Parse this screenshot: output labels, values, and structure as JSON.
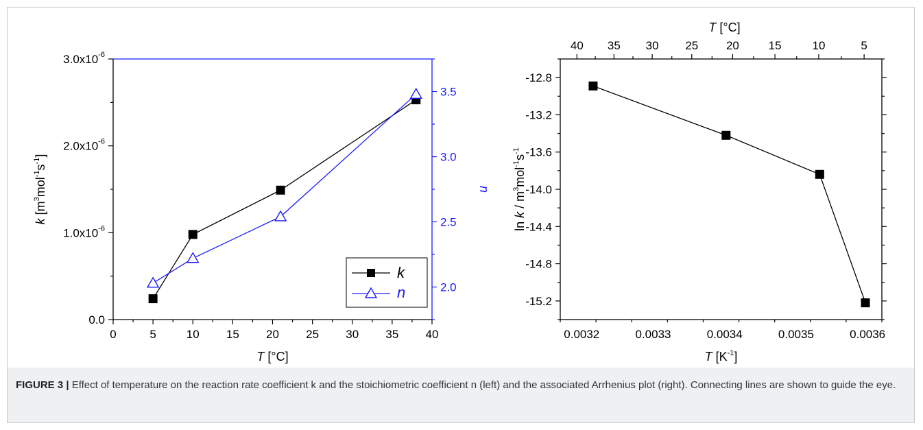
{
  "chart_data": [
    {
      "type": "line",
      "xlabel": "T [°C]",
      "ylabel_left": "k [m³mol⁻¹s⁻¹]",
      "ylabel_right": "n",
      "xlim": [
        0,
        40
      ],
      "ylim_left": [
        0,
        3e-06
      ],
      "ylim_right": [
        1.75,
        3.75
      ],
      "x_ticks": [
        "0",
        "5",
        "10",
        "15",
        "20",
        "25",
        "30",
        "35",
        "40"
      ],
      "y_left_ticks": [
        {
          "value": 0,
          "base": "0.0",
          "exp": ""
        },
        {
          "value": 1e-06,
          "base": "1.0x10",
          "exp": "-6"
        },
        {
          "value": 2e-06,
          "base": "2.0x10",
          "exp": "-6"
        },
        {
          "value": 3e-06,
          "base": "3.0x10",
          "exp": "-6"
        }
      ],
      "y_right_ticks": [
        "2.0",
        "2.5",
        "3.0",
        "3.5"
      ],
      "series": [
        {
          "name": "k",
          "axis": "left",
          "color": "#000000",
          "marker": "filled-square",
          "x": [
            5,
            10,
            21,
            38
          ],
          "values": [
            2.4e-07,
            9.8e-07,
            1.49e-06,
            2.53e-06
          ]
        },
        {
          "name": "n",
          "axis": "right",
          "color": "#1a1aff",
          "marker": "open-triangle",
          "x": [
            5,
            10,
            21,
            38
          ],
          "values": [
            2.03,
            2.22,
            2.54,
            3.48
          ]
        }
      ],
      "legend": {
        "position": "bottom-right",
        "entries": [
          "k",
          "n"
        ]
      },
      "grid": false
    },
    {
      "type": "line",
      "xlabel": "T [K⁻¹]",
      "x2label": "T [°C]",
      "ylabel": "ln k / m³mol⁻¹s⁻¹",
      "xlim": [
        0.00317,
        0.00362
      ],
      "ylim": [
        -15.4,
        -12.6
      ],
      "x_ticks": [
        "0.0032",
        "0.0033",
        "0.0034",
        "0.0035",
        "0.0036"
      ],
      "x2_ticks": [
        "40",
        "35",
        "30",
        "25",
        "20",
        "15",
        "10",
        "5"
      ],
      "y_ticks": [
        "-12.8",
        "-13.2",
        "-13.6",
        "-14.0",
        "-14.4",
        "-14.8",
        "-15.2"
      ],
      "series": [
        {
          "color": "#000000",
          "marker": "filled-square",
          "x": [
            0.003216,
            0.003402,
            0.003533,
            0.003597
          ],
          "values": [
            -12.89,
            -13.42,
            -13.84,
            -15.22
          ]
        }
      ],
      "grid": false
    }
  ],
  "caption": {
    "label": "FIGURE 3 |",
    "text": " Effect of temperature on the reaction rate coefficient k and the stoichiometric coefficient n (left) and the associated Arrhenius plot (right). Connecting lines are shown to guide the eye."
  }
}
